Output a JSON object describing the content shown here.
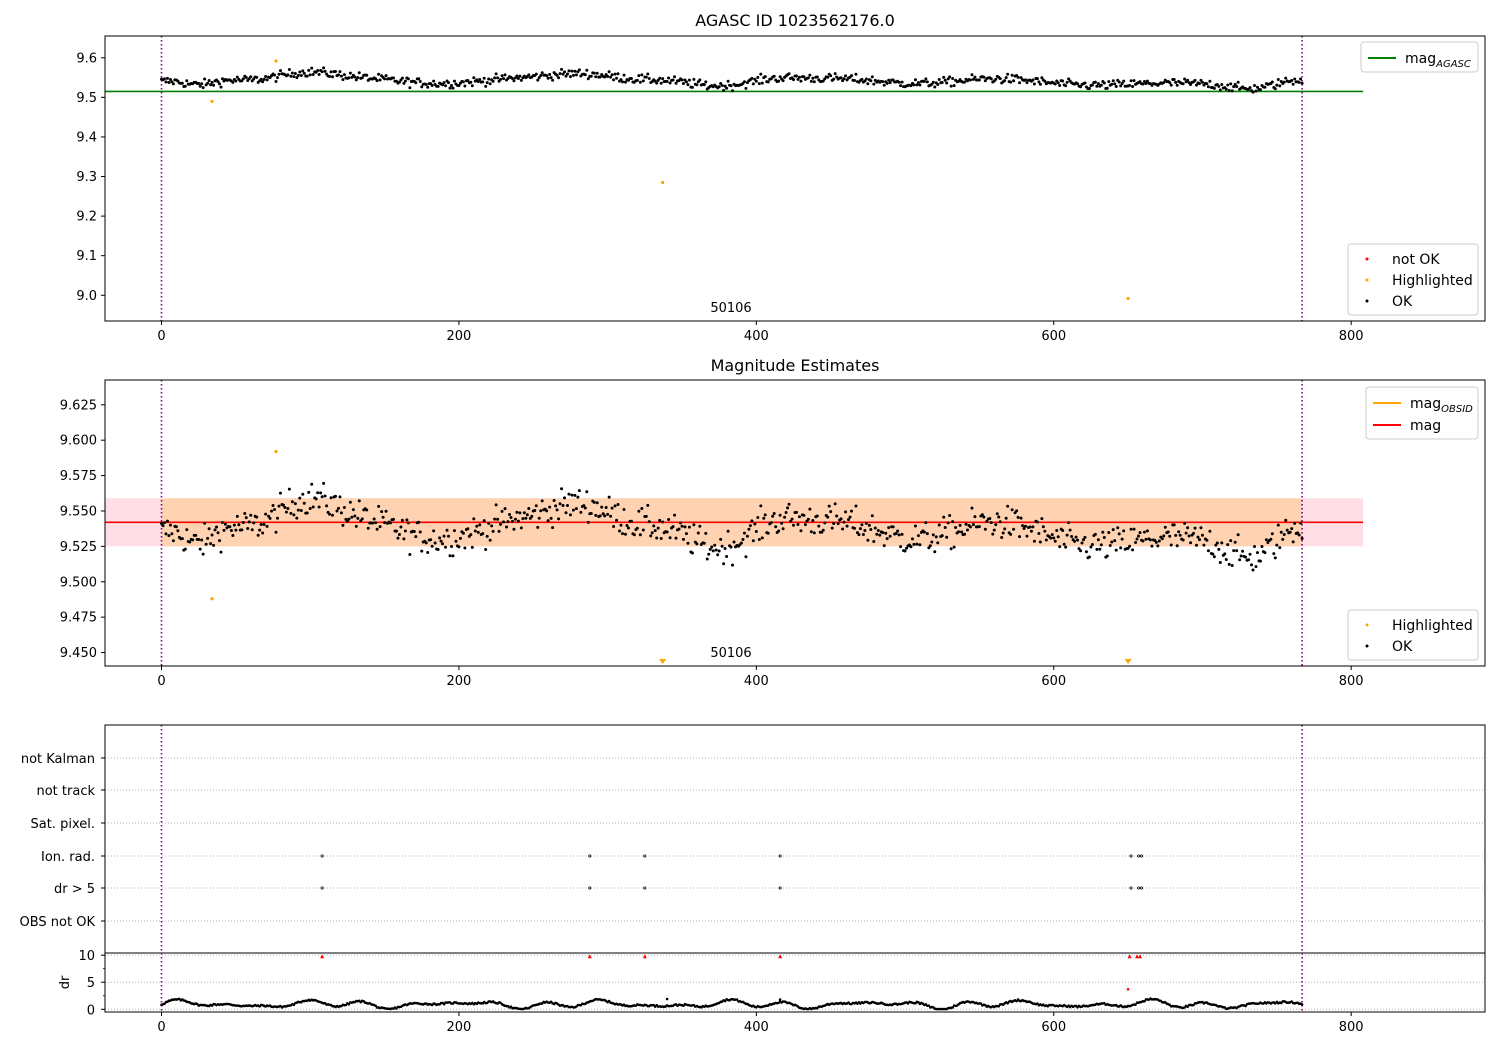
{
  "chart_data": [
    {
      "type": "scatter",
      "title": "AGASC ID 1023562176.0",
      "xlim": [
        -38,
        890
      ],
      "ylim": [
        8.935,
        9.655
      ],
      "xticks": [
        0,
        200,
        400,
        600,
        800
      ],
      "yticks": [
        9.0,
        9.1,
        9.2,
        9.3,
        9.4,
        9.5,
        9.6
      ],
      "ytick_labels": [
        "9.0",
        "9.1",
        "9.2",
        "9.3",
        "9.4",
        "9.5",
        "9.6"
      ],
      "obsid_label": "50106",
      "obs_bounds": [
        0,
        767
      ],
      "hline": {
        "name": "mag",
        "sub": "AGASC",
        "value": 9.515,
        "color": "#008000",
        "x_end": 808
      },
      "legend_lines": [
        {
          "name": "mag",
          "sub": "AGASC",
          "color": "#008000"
        }
      ],
      "legend_markers": [
        {
          "name": "not OK",
          "color": "#ff0000"
        },
        {
          "name": "Highlighted",
          "color": "#ffa500"
        },
        {
          "name": "OK",
          "color": "#000000"
        }
      ],
      "series": [
        {
          "name": "Highlighted",
          "color": "#ffa500",
          "points": [
            [
              77,
              9.592
            ],
            [
              34,
              9.49
            ],
            [
              337,
              9.285
            ],
            [
              650,
              8.992
            ]
          ]
        }
      ]
    },
    {
      "type": "scatter",
      "title": "Magnitude Estimates",
      "xlim": [
        -38,
        890
      ],
      "ylim": [
        9.4405,
        9.6425
      ],
      "xticks": [
        0,
        200,
        400,
        600,
        800
      ],
      "yticks": [
        9.45,
        9.475,
        9.5,
        9.525,
        9.55,
        9.575,
        9.6,
        9.625
      ],
      "ytick_labels": [
        "9.450",
        "9.475",
        "9.500",
        "9.525",
        "9.550",
        "9.575",
        "9.600",
        "9.625"
      ],
      "obsid_label": "50106",
      "obs_bounds": [
        0,
        767
      ],
      "hline": {
        "name": "mag",
        "value": 9.542,
        "color": "#ff0000",
        "x_end": 808
      },
      "bands": [
        {
          "y0": 9.525,
          "y1": 9.559,
          "x0": -38,
          "x1": 808,
          "color": "#ffc0cb",
          "opacity": 0.5
        },
        {
          "y0": 9.525,
          "y1": 9.559,
          "x0": 0,
          "x1": 767,
          "color": "#ffa500",
          "opacity": 0.22
        }
      ],
      "legend_lines": [
        {
          "name": "mag",
          "sub": "OBSID",
          "color": "#ffa500"
        },
        {
          "name": "mag",
          "color": "#ff0000"
        }
      ],
      "legend_markers": [
        {
          "name": "Highlighted",
          "color": "#ffa500"
        },
        {
          "name": "OK",
          "color": "#000000"
        }
      ],
      "series": [
        {
          "name": "Highlighted",
          "color": "#ffa500",
          "points": [
            [
              77,
              9.592
            ],
            [
              34,
              9.488
            ]
          ]
        }
      ],
      "below_range_markers": [
        {
          "x": 337,
          "color": "#ffa500"
        },
        {
          "x": 650,
          "color": "#ffa500"
        }
      ]
    },
    {
      "type": "scatter",
      "xlim": [
        -38,
        890
      ],
      "xticks": [
        0,
        200,
        400,
        600,
        800
      ],
      "obs_bounds": [
        0,
        767
      ],
      "categories": [
        "not Kalman",
        "not track",
        "Sat. pixel.",
        "Ion. rad.",
        "dr > 5",
        "OBS not OK"
      ],
      "flag_x": {
        "Ion. rad.": [
          108,
          288,
          325,
          416,
          652,
          657,
          659
        ],
        "dr > 5": [
          108,
          288,
          325,
          416,
          652,
          657,
          659
        ]
      },
      "dr_panel": {
        "ylabel": "dr",
        "ylim": [
          -0.5,
          10.4
        ],
        "yticks": [
          0,
          5,
          10
        ],
        "capped_x": [
          108,
          288,
          325,
          416,
          651,
          656,
          658
        ],
        "capped_value": 9.8,
        "outliers": [
          [
            650,
            3.7,
            "#ff0000"
          ],
          [
            416,
            1.8,
            "#000000"
          ],
          [
            340,
            1.9,
            "#000000"
          ]
        ]
      }
    }
  ]
}
